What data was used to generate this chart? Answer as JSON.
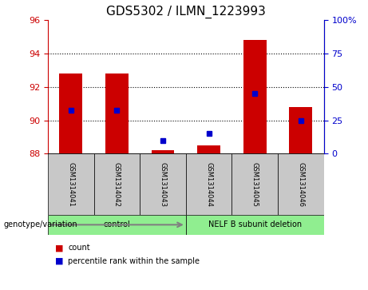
{
  "title": "GDS5302 / ILMN_1223993",
  "samples": [
    "GSM1314041",
    "GSM1314042",
    "GSM1314043",
    "GSM1314044",
    "GSM1314045",
    "GSM1314046"
  ],
  "count_values": [
    92.8,
    92.8,
    88.2,
    88.5,
    94.8,
    90.8
  ],
  "percentile_values": [
    32.5,
    32.5,
    10.0,
    15.0,
    45.0,
    25.0
  ],
  "ylim_left": [
    88,
    96
  ],
  "yticks_left": [
    88,
    90,
    92,
    94,
    96
  ],
  "ylim_right": [
    0,
    100
  ],
  "yticks_right": [
    0,
    25,
    50,
    75,
    100
  ],
  "yticklabels_right": [
    "0",
    "25",
    "50",
    "75",
    "100%"
  ],
  "bar_bottom": 88,
  "group_labels": [
    "control",
    "NELF B subunit deletion"
  ],
  "group_ranges": [
    [
      0,
      3
    ],
    [
      3,
      6
    ]
  ],
  "sample_bg_color": "#C8C8C8",
  "group_bg_color": "#90EE90",
  "bar_color": "#CC0000",
  "dot_color": "#0000CC",
  "genotype_label": "genotype/variation",
  "legend_count": "count",
  "legend_percentile": "percentile rank within the sample",
  "title_fontsize": 11,
  "tick_fontsize": 8,
  "sample_fontsize": 6,
  "group_fontsize": 7,
  "legend_fontsize": 7
}
